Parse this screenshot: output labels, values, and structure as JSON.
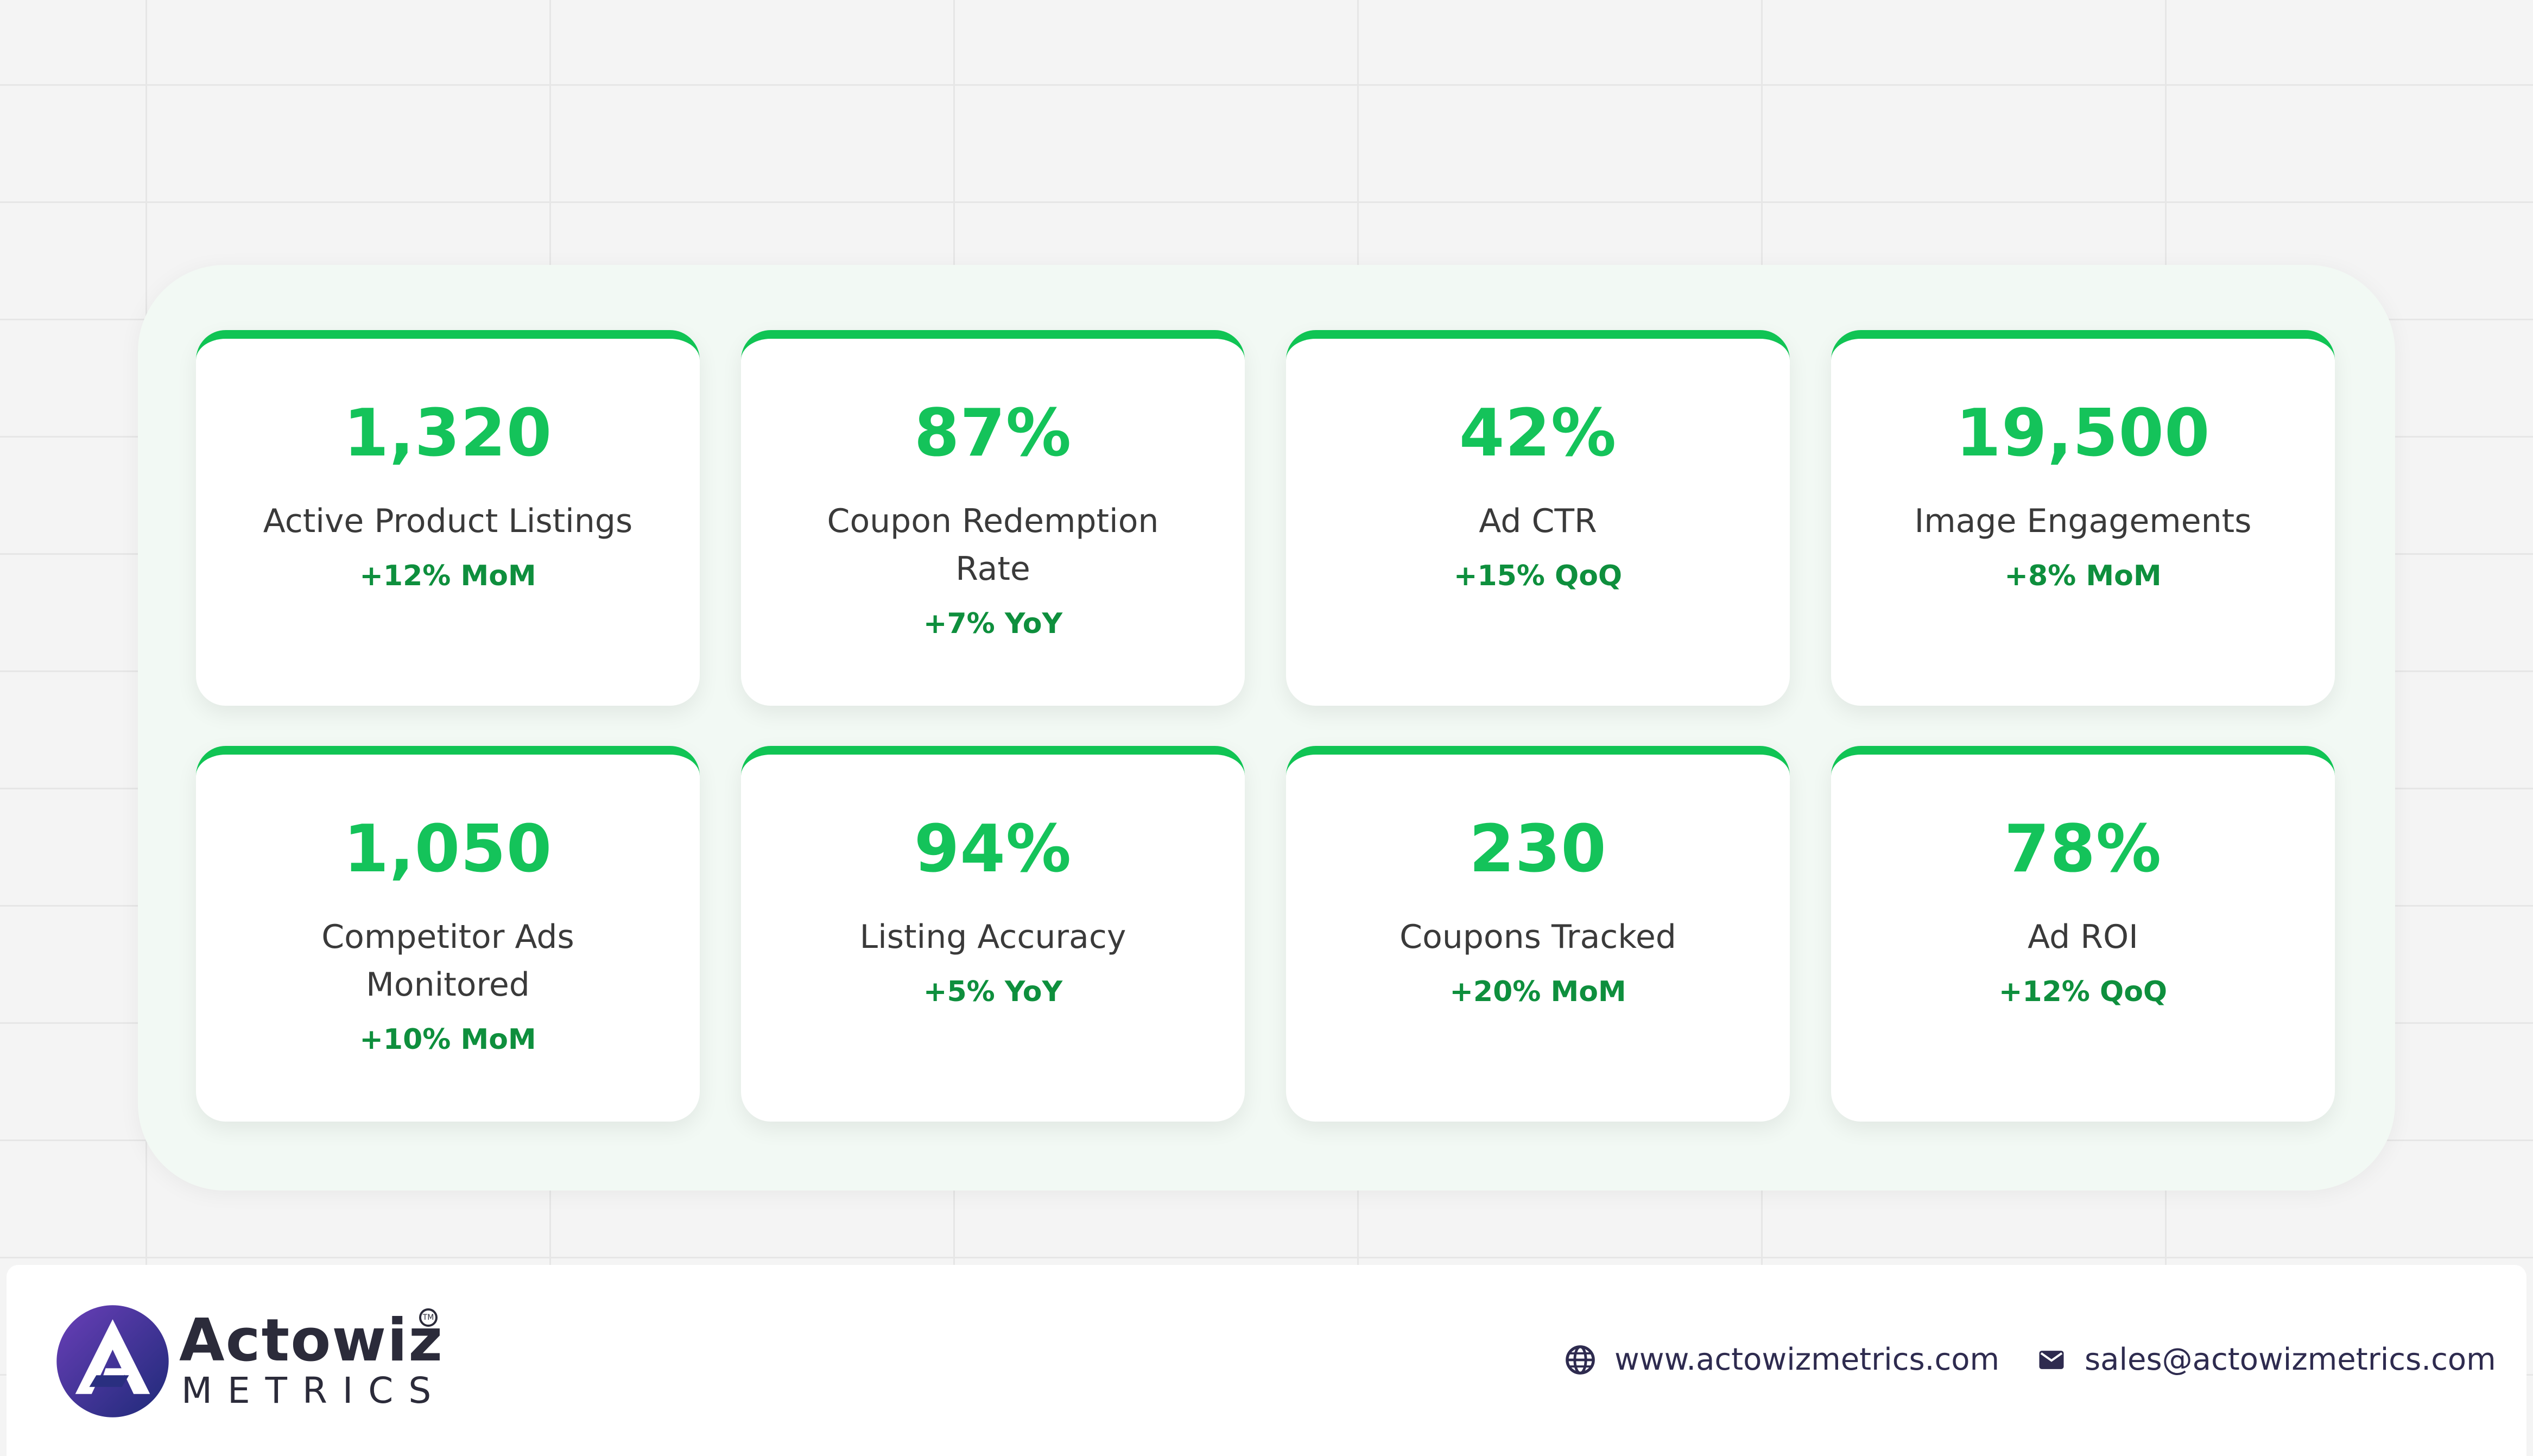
{
  "stats": [
    {
      "value": "1,320",
      "label": "Active Product Listings",
      "change": "+12% MoM"
    },
    {
      "value": "87%",
      "label": "Coupon Redemption Rate",
      "change": "+7% YoY"
    },
    {
      "value": "42%",
      "label": "Ad CTR",
      "change": "+15% QoQ"
    },
    {
      "value": "19,500",
      "label": "Image Engagements",
      "change": "+8% MoM"
    },
    {
      "value": "1,050",
      "label": "Competitor Ads Monitored",
      "change": "+10% MoM"
    },
    {
      "value": "94%",
      "label": "Listing Accuracy",
      "change": "+5% YoY"
    },
    {
      "value": "230",
      "label": "Coupons Tracked",
      "change": "+20% MoM"
    },
    {
      "value": "78%",
      "label": "Ad ROI",
      "change": "+12% QoQ"
    }
  ],
  "footer": {
    "brand_name": "Actowiz",
    "brand_sub": "METRICS",
    "trademark": "TM",
    "website": "www.actowizmetrics.com",
    "email": "sales@actowizmetrics.com",
    "website_icon": "globe-icon",
    "email_icon": "envelope-icon"
  },
  "colors": {
    "accent_green": "#14c35a",
    "change_green": "#0e8f3d",
    "panel_bg": "#f2f9f4",
    "brand_navy": "#2e2b4f"
  }
}
